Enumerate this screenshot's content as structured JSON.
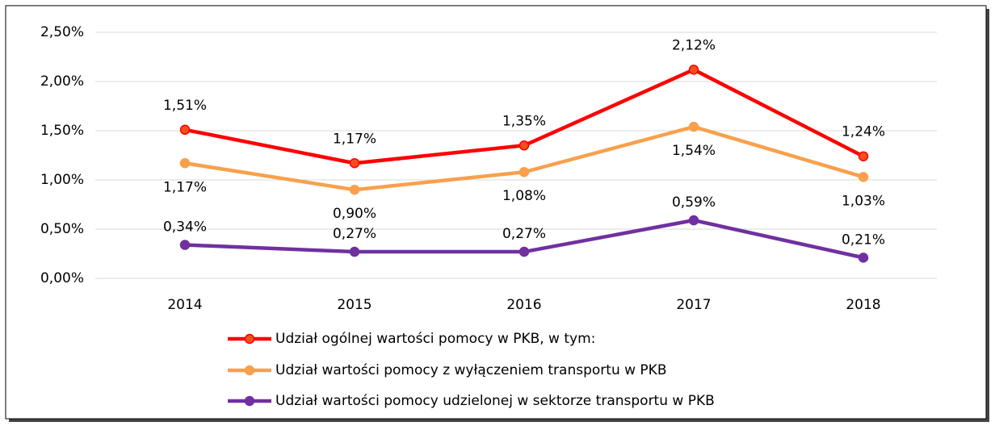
{
  "chart_data": {
    "type": "line",
    "categories": [
      "2014",
      "2015",
      "2016",
      "2017",
      "2018"
    ],
    "series": [
      {
        "name": "Udział ogólnej wartości pomocy w PKB, w tym:",
        "color": "#ff0000",
        "marker_color": "#f0501e",
        "values": [
          1.51,
          1.17,
          1.35,
          2.12,
          1.24
        ],
        "value_labels": [
          "1,51%",
          "1,17%",
          "1,35%",
          "2,12%",
          "1,24%"
        ]
      },
      {
        "name": "Udział wartości pomocy z wyłączeniem transportu w PKB",
        "color": "#f9a04c",
        "marker_color": "#f9a04c",
        "values": [
          1.17,
          0.9,
          1.08,
          1.54,
          1.03
        ],
        "value_labels": [
          "1,17%",
          "0,90%",
          "1,08%",
          "1,54%",
          "1,03%"
        ]
      },
      {
        "name": "Udział wartości pomocy udzielonej w sektorze transportu w PKB",
        "color": "#7030a0",
        "marker_color": "#7030a0",
        "values": [
          0.34,
          0.27,
          0.27,
          0.59,
          0.21
        ],
        "value_labels": [
          "0,34%",
          "0,27%",
          "0,27%",
          "0,59%",
          "0,21%"
        ]
      }
    ],
    "ylim": [
      0,
      2.5
    ],
    "yticks": [
      {
        "value": 0,
        "label": "0,00%"
      },
      {
        "value": 0.5,
        "label": "0,50%"
      },
      {
        "value": 1,
        "label": "1,00%"
      },
      {
        "value": 1.5,
        "label": "1,50%"
      },
      {
        "value": 2,
        "label": "2,00%"
      },
      {
        "value": 2.5,
        "label": "2,50%"
      }
    ],
    "grid": true,
    "legend": "bottom"
  }
}
